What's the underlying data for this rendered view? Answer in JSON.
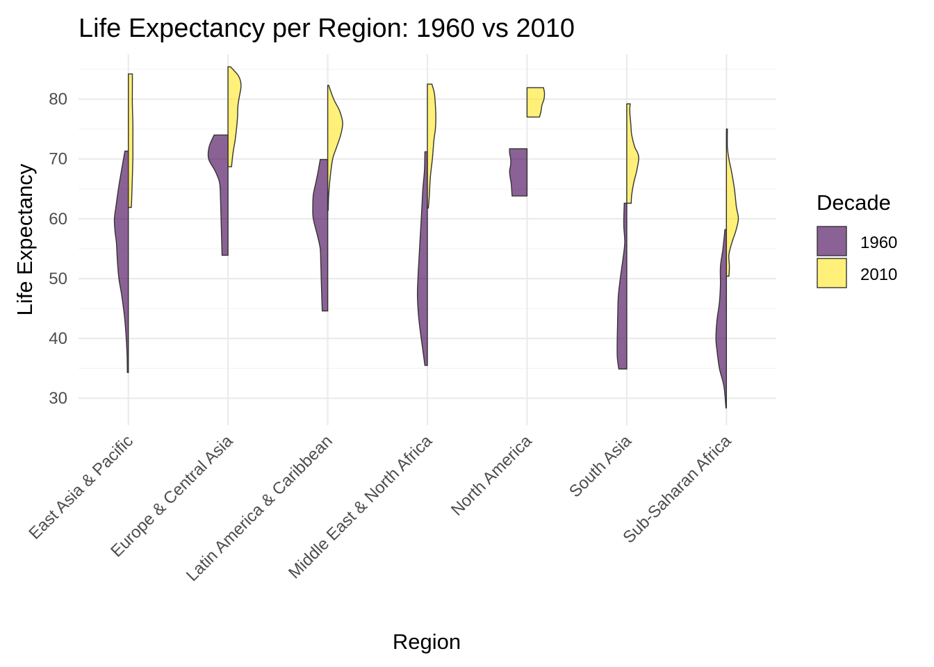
{
  "chart_data": {
    "type": "half-violin",
    "title": "Life Expectancy per Region: 1960 vs 2010",
    "xlabel": "Region",
    "ylabel": "Life Expectancy",
    "ylim": [
      25.5,
      87.5
    ],
    "yticks": [
      30,
      40,
      50,
      60,
      70,
      80
    ],
    "categories": [
      "East Asia & Pacific",
      "Europe & Central Asia",
      "Latin America & Caribbean",
      "Middle East & North Africa",
      "North America",
      "South Asia",
      "Sub-Saharan Africa"
    ],
    "legend": {
      "title": "Decade",
      "position": "right",
      "items": [
        {
          "label": "1960",
          "color": "#440154"
        },
        {
          "label": "2010",
          "color": "#FDE725"
        }
      ]
    },
    "grid": true,
    "series": [
      {
        "name": "1960",
        "side": "left",
        "color": "#440154",
        "opacity": 0.62,
        "violins": [
          {
            "region": "East Asia & Pacific",
            "min": 34.3,
            "max": 71.3,
            "profile": [
              [
                34.3,
                0.02
              ],
              [
                38,
                0.03
              ],
              [
                43,
                0.07
              ],
              [
                47,
                0.13
              ],
              [
                50,
                0.19
              ],
              [
                53,
                0.22
              ],
              [
                56,
                0.24
              ],
              [
                58,
                0.27
              ],
              [
                60,
                0.28
              ],
              [
                62,
                0.25
              ],
              [
                65,
                0.2
              ],
              [
                68,
                0.14
              ],
              [
                71.3,
                0.07
              ]
            ]
          },
          {
            "region": "Europe & Central Asia",
            "min": 53.9,
            "max": 74.0,
            "profile": [
              [
                53.9,
                0.12
              ],
              [
                57,
                0.13
              ],
              [
                60,
                0.14
              ],
              [
                63,
                0.15
              ],
              [
                66,
                0.17
              ],
              [
                68,
                0.26
              ],
              [
                70,
                0.39
              ],
              [
                72,
                0.38
              ],
              [
                74,
                0.28
              ]
            ]
          },
          {
            "region": "Latin America & Caribbean",
            "min": 44.6,
            "max": 69.9,
            "profile": [
              [
                44.6,
                0.11
              ],
              [
                47,
                0.12
              ],
              [
                50,
                0.13
              ],
              [
                53,
                0.14
              ],
              [
                55,
                0.15
              ],
              [
                57,
                0.2
              ],
              [
                60,
                0.29
              ],
              [
                62,
                0.3
              ],
              [
                64,
                0.29
              ],
              [
                66,
                0.24
              ],
              [
                68,
                0.19
              ],
              [
                69.9,
                0.15
              ]
            ]
          },
          {
            "region": "Middle East & North Africa",
            "min": 35.5,
            "max": 71.2,
            "profile": [
              [
                35.5,
                0.05
              ],
              [
                38,
                0.09
              ],
              [
                41,
                0.14
              ],
              [
                44,
                0.18
              ],
              [
                47,
                0.2
              ],
              [
                50,
                0.19
              ],
              [
                53,
                0.17
              ],
              [
                56,
                0.15
              ],
              [
                59,
                0.13
              ],
              [
                62,
                0.11
              ],
              [
                65,
                0.09
              ],
              [
                68,
                0.06
              ],
              [
                71.2,
                0.05
              ]
            ]
          },
          {
            "region": "North America",
            "min": 63.8,
            "max": 71.7,
            "profile": [
              [
                63.8,
                0.3
              ],
              [
                65,
                0.31
              ],
              [
                66,
                0.32
              ],
              [
                67,
                0.34
              ],
              [
                68,
                0.35
              ],
              [
                69,
                0.33
              ],
              [
                70,
                0.33
              ],
              [
                71,
                0.35
              ],
              [
                71.7,
                0.35
              ]
            ]
          },
          {
            "region": "South Asia",
            "min": 34.9,
            "max": 62.6,
            "profile": [
              [
                34.9,
                0.16
              ],
              [
                37,
                0.19
              ],
              [
                40,
                0.19
              ],
              [
                44,
                0.18
              ],
              [
                47,
                0.17
              ],
              [
                50,
                0.13
              ],
              [
                53,
                0.08
              ],
              [
                56,
                0.04
              ],
              [
                59,
                0.06
              ],
              [
                62.6,
                0.05
              ]
            ]
          },
          {
            "region": "Sub-Saharan Africa",
            "min": 28.4,
            "max": 58.2,
            "profile": [
              [
                28.4,
                0.01
              ],
              [
                32,
                0.05
              ],
              [
                35,
                0.14
              ],
              [
                38,
                0.19
              ],
              [
                40,
                0.21
              ],
              [
                43,
                0.19
              ],
              [
                46,
                0.14
              ],
              [
                49,
                0.12
              ],
              [
                52,
                0.12
              ],
              [
                55,
                0.07
              ],
              [
                58.2,
                0.03
              ]
            ]
          }
        ]
      },
      {
        "name": "2010",
        "side": "right",
        "color": "#FDE725",
        "opacity": 0.62,
        "violins": [
          {
            "region": "East Asia & Pacific",
            "min": 61.9,
            "max": 84.2,
            "profile": [
              [
                61.9,
                0.06
              ],
              [
                64,
                0.07
              ],
              [
                67,
                0.08
              ],
              [
                70,
                0.09
              ],
              [
                73,
                0.09
              ],
              [
                76,
                0.09
              ],
              [
                79,
                0.08
              ],
              [
                82,
                0.08
              ],
              [
                84.2,
                0.08
              ]
            ]
          },
          {
            "region": "Europe & Central Asia",
            "min": 68.7,
            "max": 85.4,
            "profile": [
              [
                68.7,
                0.07
              ],
              [
                71,
                0.1
              ],
              [
                73,
                0.14
              ],
              [
                75,
                0.17
              ],
              [
                77,
                0.19
              ],
              [
                79,
                0.2
              ],
              [
                81,
                0.24
              ],
              [
                82,
                0.26
              ],
              [
                83,
                0.25
              ],
              [
                84,
                0.2
              ],
              [
                85.4,
                0.05
              ]
            ]
          },
          {
            "region": "Latin America & Caribbean",
            "min": 61.4,
            "max": 82.3,
            "profile": [
              [
                61.4,
                0.01
              ],
              [
                64,
                0.02
              ],
              [
                67,
                0.05
              ],
              [
                70,
                0.1
              ],
              [
                72,
                0.18
              ],
              [
                74,
                0.26
              ],
              [
                76,
                0.3
              ],
              [
                78,
                0.24
              ],
              [
                80,
                0.12
              ],
              [
                82.3,
                0.02
              ]
            ]
          },
          {
            "region": "Middle East & North Africa",
            "min": 61.8,
            "max": 82.5,
            "profile": [
              [
                61.8,
                0.02
              ],
              [
                64,
                0.04
              ],
              [
                67,
                0.06
              ],
              [
                70,
                0.1
              ],
              [
                73,
                0.13
              ],
              [
                75,
                0.16
              ],
              [
                77,
                0.17
              ],
              [
                79,
                0.16
              ],
              [
                81,
                0.14
              ],
              [
                82.5,
                0.09
              ]
            ]
          },
          {
            "region": "North America",
            "min": 77.0,
            "max": 81.9,
            "profile": [
              [
                77.0,
                0.25
              ],
              [
                78,
                0.28
              ],
              [
                79,
                0.3
              ],
              [
                80,
                0.34
              ],
              [
                81,
                0.35
              ],
              [
                81.9,
                0.33
              ]
            ]
          },
          {
            "region": "South Asia",
            "min": 62.6,
            "max": 79.2,
            "profile": [
              [
                62.6,
                0.09
              ],
              [
                64,
                0.1
              ],
              [
                66,
                0.14
              ],
              [
                68,
                0.2
              ],
              [
                70,
                0.24
              ],
              [
                71,
                0.22
              ],
              [
                72,
                0.16
              ],
              [
                74,
                0.1
              ],
              [
                76,
                0.08
              ],
              [
                78,
                0.06
              ],
              [
                79.2,
                0.07
              ]
            ]
          },
          {
            "region": "Sub-Saharan Africa",
            "min": 50.4,
            "max": 75.0,
            "profile": [
              [
                50.4,
                0.05
              ],
              [
                52,
                0.06
              ],
              [
                54,
                0.05
              ],
              [
                56,
                0.11
              ],
              [
                58,
                0.19
              ],
              [
                60,
                0.24
              ],
              [
                62,
                0.2
              ],
              [
                65,
                0.16
              ],
              [
                68,
                0.1
              ],
              [
                70,
                0.05
              ],
              [
                72,
                0.02
              ],
              [
                75.0,
                0.02
              ]
            ]
          }
        ]
      }
    ]
  }
}
